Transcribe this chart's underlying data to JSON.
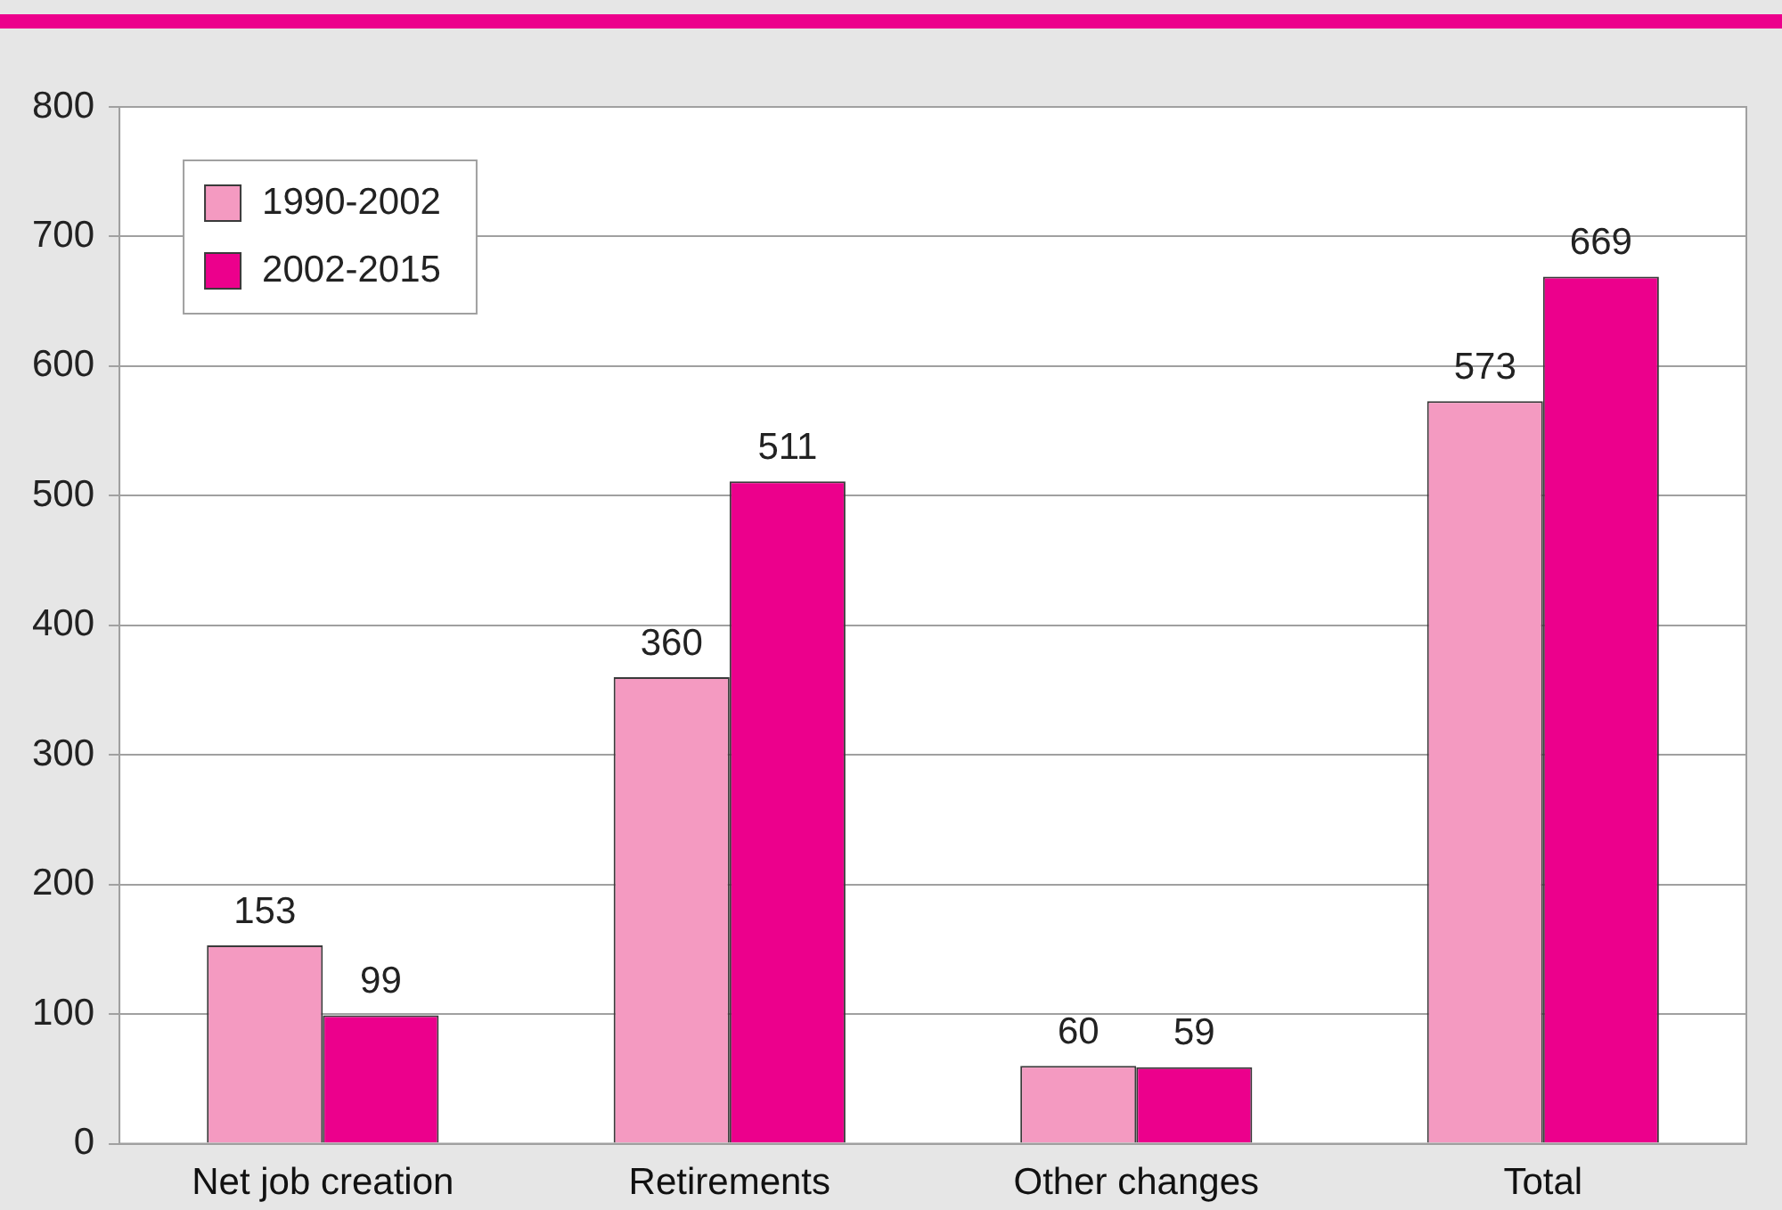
{
  "chart_data": {
    "type": "bar",
    "categories": [
      "Net job creation",
      "Retirements",
      "Other changes",
      "Total"
    ],
    "series": [
      {
        "name": "1990-2002",
        "color": "#f49ac1",
        "values": [
          153,
          360,
          60,
          573
        ]
      },
      {
        "name": "2002-2015",
        "color": "#ec008c",
        "values": [
          99,
          511,
          59,
          669
        ]
      }
    ],
    "ylim": [
      0,
      800
    ],
    "yticks": [
      0,
      100,
      200,
      300,
      400,
      500,
      600,
      700,
      800
    ],
    "grid": "y",
    "legend": "top left",
    "data_labels": true
  }
}
